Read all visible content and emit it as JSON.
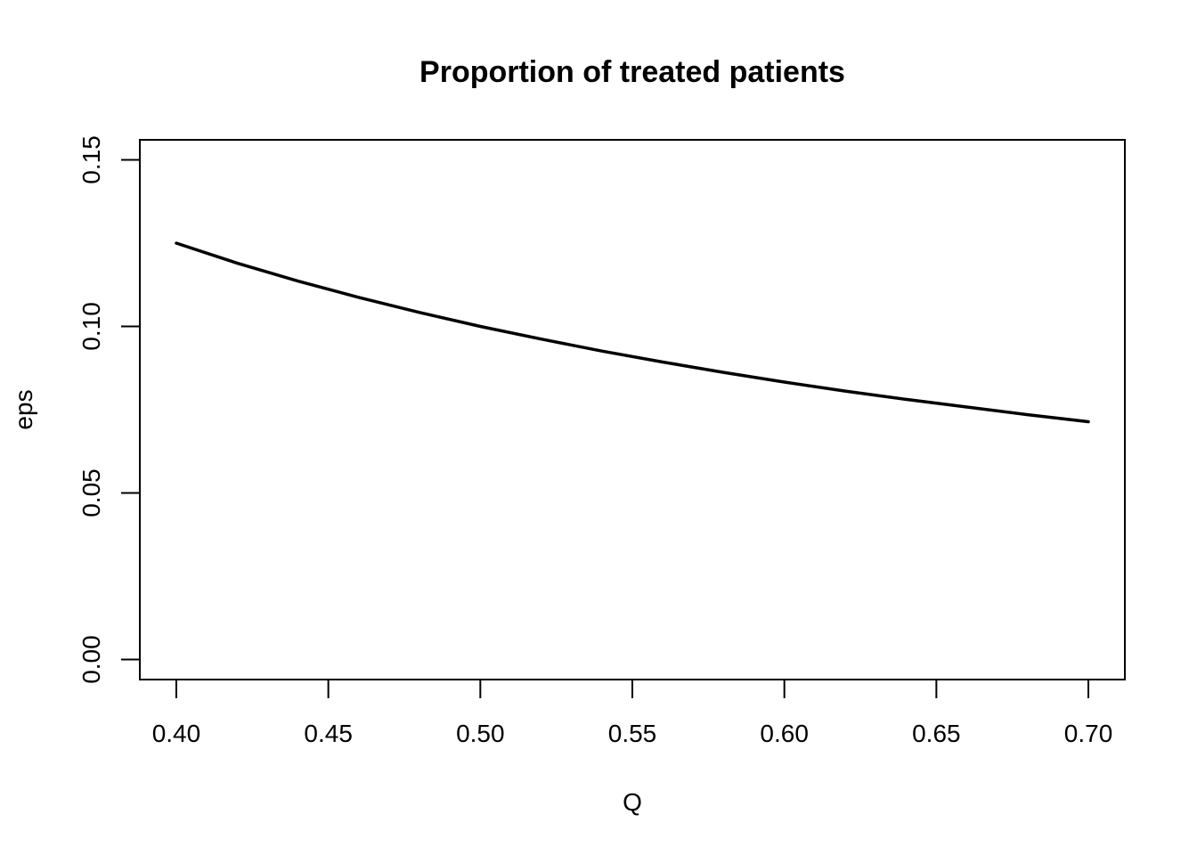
{
  "chart_data": {
    "type": "line",
    "title": "Proportion of treated patients",
    "xlabel": "Q",
    "ylabel": "eps",
    "xlim": [
      0.388,
      0.712
    ],
    "ylim": [
      -0.006,
      0.156
    ],
    "xticks": [
      0.4,
      0.45,
      0.5,
      0.55,
      0.6,
      0.65,
      0.7
    ],
    "xtick_labels": [
      "0.40",
      "0.45",
      "0.50",
      "0.55",
      "0.60",
      "0.65",
      "0.70"
    ],
    "yticks": [
      0.0,
      0.05,
      0.1,
      0.15
    ],
    "ytick_labels": [
      "0.00",
      "0.05",
      "0.10",
      "0.15"
    ],
    "grid": false,
    "series": [
      {
        "color": "#000000",
        "x": [
          0.4,
          0.42,
          0.44,
          0.46,
          0.48,
          0.5,
          0.52,
          0.54,
          0.56,
          0.58,
          0.6,
          0.62,
          0.64,
          0.66,
          0.68,
          0.7
        ],
        "y": [
          0.125,
          0.119,
          0.1136,
          0.1087,
          0.1042,
          0.1,
          0.0962,
          0.0926,
          0.0893,
          0.0862,
          0.0833,
          0.0806,
          0.0781,
          0.0758,
          0.0735,
          0.0714
        ]
      }
    ]
  }
}
